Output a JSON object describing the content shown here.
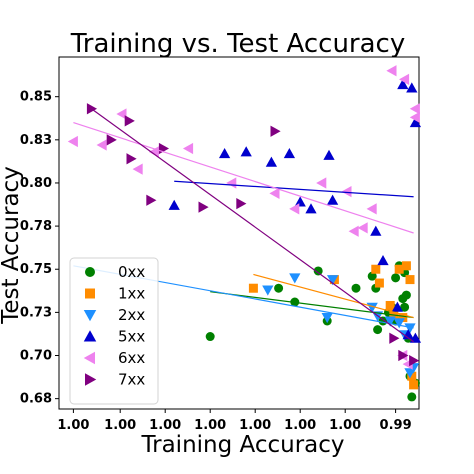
{
  "chart_data": {
    "type": "scatter",
    "title": "Training vs. Test Accuracy",
    "xlabel": "Training Accuracy",
    "ylabel": "Test Accuracy",
    "xlim": [
      0,
      1
    ],
    "ylim": [
      0.669,
      0.873
    ],
    "x_tick_values": [
      0.04,
      0.17,
      0.295,
      0.42,
      0.545,
      0.67,
      0.795,
      0.935
    ],
    "x_tick_labels": [
      "1.00",
      "1.00",
      "1.00",
      "1.00",
      "1.00",
      "1.00",
      "1.00",
      "0.99"
    ],
    "y_tick_values": [
      0.675,
      0.7,
      0.725,
      0.75,
      0.775,
      0.8,
      0.825,
      0.85
    ],
    "y_tick_labels": [
      "0.68",
      "0.70",
      "0.73",
      "0.75",
      "0.78",
      "0.80",
      "0.83",
      "0.85"
    ],
    "grid": false,
    "legend_position": "lower-left",
    "series": [
      {
        "name": "0xx",
        "marker": "circle",
        "color": "#008000",
        "points": [
          [
            0.42,
            0.711
          ],
          [
            0.61,
            0.739
          ],
          [
            0.655,
            0.731
          ],
          [
            0.72,
            0.749
          ],
          [
            0.745,
            0.72
          ],
          [
            0.825,
            0.739
          ],
          [
            0.87,
            0.746
          ],
          [
            0.88,
            0.739
          ],
          [
            0.885,
            0.715
          ],
          [
            0.9,
            0.72
          ],
          [
            0.915,
            0.725
          ],
          [
            0.925,
            0.728
          ],
          [
            0.935,
            0.745
          ],
          [
            0.945,
            0.752
          ],
          [
            0.955,
            0.733
          ],
          [
            0.96,
            0.748
          ],
          [
            0.965,
            0.735
          ],
          [
            0.97,
            0.71
          ],
          [
            0.975,
            0.688
          ],
          [
            0.98,
            0.676
          ],
          [
            0.99,
            0.684
          ],
          [
            0.935,
            0.72
          ],
          [
            0.96,
            0.728
          ]
        ],
        "fit": [
          [
            0.42,
            0.737
          ],
          [
            0.985,
            0.722
          ]
        ]
      },
      {
        "name": "1xx",
        "marker": "square",
        "color": "#ff8c00",
        "points": [
          [
            0.54,
            0.739
          ],
          [
            0.765,
            0.744
          ],
          [
            0.88,
            0.75
          ],
          [
            0.89,
            0.742
          ],
          [
            0.92,
            0.729
          ],
          [
            0.93,
            0.724
          ],
          [
            0.945,
            0.75
          ],
          [
            0.955,
            0.722
          ],
          [
            0.965,
            0.752
          ],
          [
            0.975,
            0.744
          ],
          [
            0.98,
            0.688
          ],
          [
            0.985,
            0.683
          ]
        ],
        "fit": [
          [
            0.54,
            0.747
          ],
          [
            0.985,
            0.722
          ]
        ]
      },
      {
        "name": "2xx",
        "marker": "triangle-down",
        "color": "#1e90ff",
        "points": [
          [
            0.58,
            0.738
          ],
          [
            0.655,
            0.745
          ],
          [
            0.745,
            0.722
          ],
          [
            0.76,
            0.744
          ],
          [
            0.87,
            0.728
          ],
          [
            0.885,
            0.723
          ],
          [
            0.92,
            0.72
          ],
          [
            0.945,
            0.719
          ],
          [
            0.96,
            0.712
          ],
          [
            0.975,
            0.716
          ],
          [
            0.985,
            0.693
          ],
          [
            0.975,
            0.69
          ]
        ],
        "fit": [
          [
            0.04,
            0.752
          ],
          [
            0.985,
            0.716
          ]
        ]
      },
      {
        "name": "5xx",
        "marker": "triangle-up",
        "color": "#0000cd",
        "points": [
          [
            0.32,
            0.787
          ],
          [
            0.46,
            0.817
          ],
          [
            0.52,
            0.818
          ],
          [
            0.59,
            0.812
          ],
          [
            0.64,
            0.817
          ],
          [
            0.67,
            0.789
          ],
          [
            0.7,
            0.785
          ],
          [
            0.75,
            0.816
          ],
          [
            0.76,
            0.79
          ],
          [
            0.88,
            0.772
          ],
          [
            0.9,
            0.755
          ],
          [
            0.94,
            0.728
          ],
          [
            0.955,
            0.857
          ],
          [
            0.98,
            0.855
          ],
          [
            0.99,
            0.835
          ],
          [
            0.99,
            0.71
          ],
          [
            0.97,
            0.712
          ]
        ],
        "fit": [
          [
            0.32,
            0.801
          ],
          [
            0.985,
            0.792
          ]
        ]
      },
      {
        "name": "6xx",
        "marker": "triangle-left",
        "color": "#ee82ee",
        "points": [
          [
            0.04,
            0.824
          ],
          [
            0.12,
            0.822
          ],
          [
            0.175,
            0.84
          ],
          [
            0.22,
            0.808
          ],
          [
            0.265,
            0.818
          ],
          [
            0.36,
            0.82
          ],
          [
            0.48,
            0.8
          ],
          [
            0.6,
            0.794
          ],
          [
            0.655,
            0.785
          ],
          [
            0.73,
            0.8
          ],
          [
            0.8,
            0.795
          ],
          [
            0.82,
            0.772
          ],
          [
            0.845,
            0.774
          ],
          [
            0.87,
            0.785
          ],
          [
            0.925,
            0.865
          ],
          [
            0.96,
            0.86
          ],
          [
            0.99,
            0.843
          ],
          [
            0.99,
            0.838
          ],
          [
            0.955,
            0.7
          ],
          [
            0.97,
            0.695
          ]
        ],
        "fit": [
          [
            0.04,
            0.835
          ],
          [
            0.985,
            0.771
          ]
        ]
      },
      {
        "name": "7xx",
        "marker": "triangle-right",
        "color": "#800080",
        "points": [
          [
            0.09,
            0.843
          ],
          [
            0.145,
            0.825
          ],
          [
            0.195,
            0.836
          ],
          [
            0.2,
            0.814
          ],
          [
            0.255,
            0.79
          ],
          [
            0.29,
            0.82
          ],
          [
            0.4,
            0.786
          ],
          [
            0.505,
            0.788
          ],
          [
            0.6,
            0.83
          ],
          [
            0.93,
            0.71
          ],
          [
            0.955,
            0.7
          ],
          [
            0.985,
            0.697
          ]
        ],
        "fit": [
          [
            0.09,
            0.843
          ],
          [
            0.985,
            0.708
          ]
        ]
      }
    ]
  }
}
